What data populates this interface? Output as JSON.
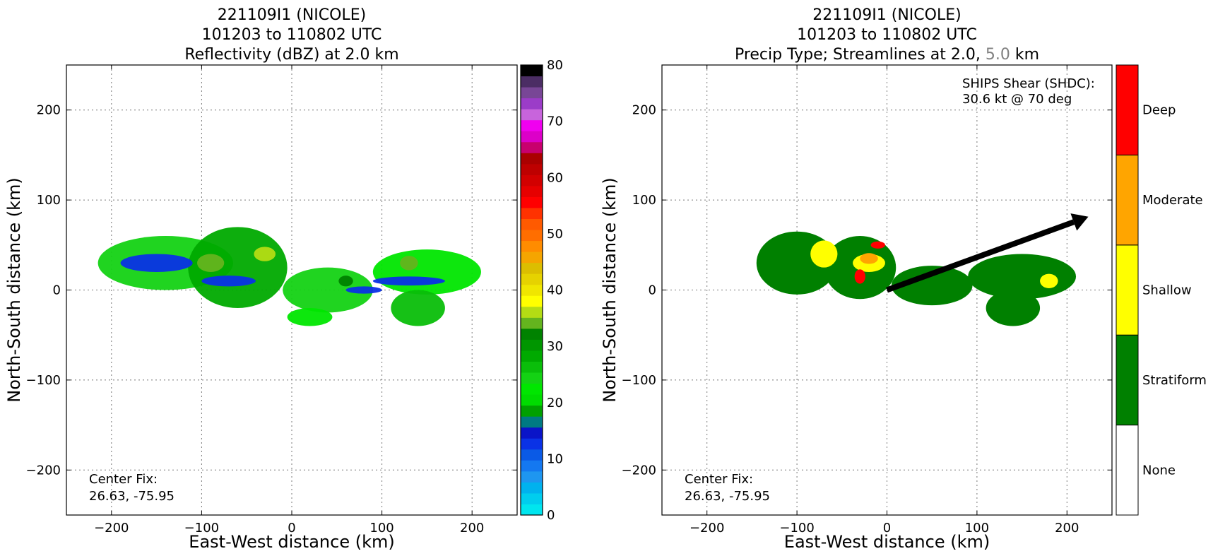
{
  "chart_data": [
    {
      "type": "heatmap",
      "title": [
        "221109I1 (NICOLE)",
        "101203 to 110802 UTC",
        "Reflectivity (dBZ) at 2.0 km"
      ],
      "xlabel": "East-West distance (km)",
      "ylabel": "North-South distance (km)",
      "xlim": [
        -250,
        250
      ],
      "ylim": [
        -250,
        250
      ],
      "xticks": [
        -200,
        -100,
        0,
        100,
        200
      ],
      "yticks": [
        -200,
        -100,
        0,
        100,
        200
      ],
      "grid": true,
      "annotation": [
        "Center Fix:",
        "26.63, -75.95"
      ],
      "colorbar": {
        "min": 0,
        "max": 80,
        "ticks": [
          0,
          10,
          20,
          30,
          40,
          50,
          60,
          70,
          80
        ],
        "colors": [
          "#00e5ee",
          "#00cdee",
          "#00b2ee",
          "#1e96f0",
          "#1478f0",
          "#0a5ae6",
          "#0a32e6",
          "#0a14c8",
          "#007a82",
          "#00a000",
          "#00dc00",
          "#00e600",
          "#14d214",
          "#0abe0a",
          "#00aa00",
          "#009600",
          "#008200",
          "#64b41e",
          "#b4dc14",
          "#ffff00",
          "#f0e600",
          "#e6d200",
          "#dcbe00",
          "#f5a500",
          "#ff8c00",
          "#ff6e00",
          "#ff5a00",
          "#ff3200",
          "#ff0000",
          "#e60000",
          "#d20000",
          "#be0000",
          "#aa0000",
          "#c8006e",
          "#dc00c8",
          "#f000f0",
          "#c864dc",
          "#9b3cc8",
          "#784696",
          "#4b2d64",
          "#000000"
        ]
      },
      "echo_regions": [
        {
          "x": -140,
          "y": 30,
          "rx": 75,
          "ry": 30,
          "dbz": 25
        },
        {
          "x": -60,
          "y": 25,
          "rx": 55,
          "ry": 45,
          "dbz": 28
        },
        {
          "x": -150,
          "y": 30,
          "rx": 40,
          "ry": 10,
          "dbz": 12
        },
        {
          "x": -70,
          "y": 10,
          "rx": 30,
          "ry": 6,
          "dbz": 12
        },
        {
          "x": 40,
          "y": 0,
          "rx": 50,
          "ry": 25,
          "dbz": 24
        },
        {
          "x": 20,
          "y": -30,
          "rx": 25,
          "ry": 10,
          "dbz": 22
        },
        {
          "x": 150,
          "y": 20,
          "rx": 60,
          "ry": 25,
          "dbz": 23
        },
        {
          "x": 140,
          "y": -20,
          "rx": 30,
          "ry": 20,
          "dbz": 26
        },
        {
          "x": 130,
          "y": 10,
          "rx": 40,
          "ry": 5,
          "dbz": 12
        },
        {
          "x": 80,
          "y": 0,
          "rx": 20,
          "ry": 4,
          "dbz": 12
        },
        {
          "x": -90,
          "y": 30,
          "rx": 15,
          "ry": 10,
          "dbz": 35
        },
        {
          "x": -30,
          "y": 40,
          "rx": 12,
          "ry": 8,
          "dbz": 36
        },
        {
          "x": 130,
          "y": 30,
          "rx": 10,
          "ry": 8,
          "dbz": 34
        },
        {
          "x": 60,
          "y": 10,
          "rx": 8,
          "ry": 6,
          "dbz": 33
        }
      ]
    },
    {
      "type": "heatmap",
      "title": [
        "221109I1 (NICOLE)",
        "101203 to 110802 UTC",
        "Precip Type; Streamlines at 2.0, ",
        "5.0",
        " km"
      ],
      "xlabel": "East-West distance (km)",
      "ylabel": "North-South distance (km)",
      "xlim": [
        -250,
        250
      ],
      "ylim": [
        -250,
        250
      ],
      "xticks": [
        -200,
        -100,
        0,
        100,
        200
      ],
      "yticks": [
        -200,
        -100,
        0,
        100,
        200
      ],
      "grid": true,
      "annotation": [
        "Center Fix:",
        "26.63, -75.95"
      ],
      "shear_text": [
        "SHIPS Shear (SHDC):",
        "30.6 kt @ 70 deg"
      ],
      "shear_vector": {
        "magnitude_kt": 30.6,
        "direction_deg": 70
      },
      "categories": [
        "None",
        "Stratiform",
        "Shallow",
        "Moderate",
        "Deep"
      ],
      "category_colors": [
        "#ffffff",
        "#008000",
        "#ffff00",
        "#ffa500",
        "#ff0000"
      ],
      "streamline_colors": {
        "2.0": "#000000",
        "5.0": "#808080"
      },
      "precip_regions": [
        {
          "x": -100,
          "y": 30,
          "rx": 45,
          "ry": 35,
          "cat": 1
        },
        {
          "x": -30,
          "y": 25,
          "rx": 40,
          "ry": 35,
          "cat": 1
        },
        {
          "x": 50,
          "y": 5,
          "rx": 45,
          "ry": 22,
          "cat": 1
        },
        {
          "x": 150,
          "y": 15,
          "rx": 60,
          "ry": 25,
          "cat": 1
        },
        {
          "x": 140,
          "y": -20,
          "rx": 30,
          "ry": 20,
          "cat": 1
        },
        {
          "x": -20,
          "y": 30,
          "rx": 18,
          "ry": 10,
          "cat": 2
        },
        {
          "x": -70,
          "y": 40,
          "rx": 15,
          "ry": 15,
          "cat": 2
        },
        {
          "x": 180,
          "y": 10,
          "rx": 10,
          "ry": 8,
          "cat": 2
        },
        {
          "x": -20,
          "y": 35,
          "rx": 10,
          "ry": 6,
          "cat": 3
        },
        {
          "x": -30,
          "y": 15,
          "rx": 6,
          "ry": 8,
          "cat": 4
        },
        {
          "x": -10,
          "y": 50,
          "rx": 8,
          "ry": 4,
          "cat": 4
        }
      ]
    }
  ]
}
